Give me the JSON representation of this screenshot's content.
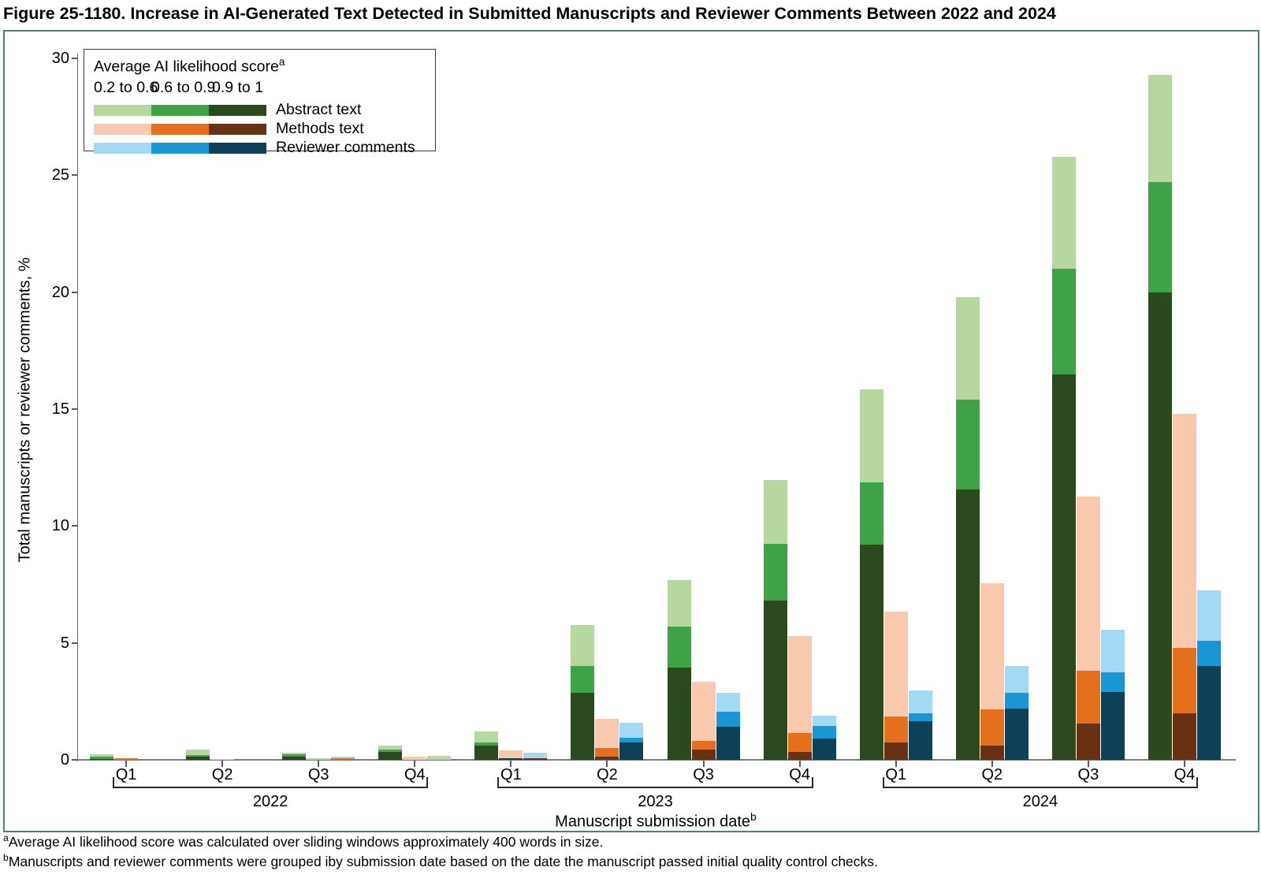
{
  "figure": {
    "title": "Figure 25-1180. Increase in AI-Generated Text Detected in Submitted Manuscripts and Reviewer Comments Between 2022 and 2024"
  },
  "legend": {
    "title": "Average AI likelihood score",
    "title_sup": "a",
    "ranges": [
      "0.2 to 0.6",
      "0.6 to 0.9",
      "0.9 to 1"
    ],
    "rows": [
      {
        "label": "Abstract text",
        "colors": [
          "gl",
          "gm",
          "gd"
        ]
      },
      {
        "label": "Methods text",
        "colors": [
          "ol",
          "om",
          "od"
        ]
      },
      {
        "label": "Reviewer comments",
        "colors": [
          "bl",
          "bm",
          "bd"
        ]
      }
    ]
  },
  "footnotes": [
    {
      "sup": "a",
      "text": "Average AI likelihood score was calculated over sliding windows approximately 400 words in size."
    },
    {
      "sup": "b",
      "text": "Manuscripts and reviewer comments were grouped iby submission date based on the date the manuscript passed initial quality control checks."
    }
  ],
  "chart_data": {
    "type": "bar",
    "stacked": true,
    "title": "Figure 25-1180. Increase in AI-Generated Text Detected in Submitted Manuscripts and Reviewer Comments Between 2022 and 2024",
    "ylabel": "Total manuscripts or reviewer comments, %",
    "xlabel": "Manuscript submission date",
    "xlabel_sup": "b",
    "ylim": [
      0,
      30
    ],
    "yticks": [
      0,
      5,
      10,
      15,
      20,
      25,
      30
    ],
    "legend_note": "Stack order bottom-to-top is 0.9 to 1 (dark), 0.6 to 0.9 (mid), 0.2 to 0.6 (light)",
    "colors": {
      "gl": "#b6d8a0",
      "gm": "#3fa246",
      "gd": "#2b491f",
      "ol": "#f8c9ae",
      "om": "#e4701e",
      "od": "#6a3013",
      "bl": "#a3d9f3",
      "bm": "#1b96d4",
      "bd": "#0d4158",
      "axis": "#7d7d7d",
      "panel_border": "#4c7f80"
    },
    "series_order": [
      "abstract",
      "methods",
      "reviewer"
    ],
    "years": [
      {
        "label": "2022",
        "quarters": [
          "Q1",
          "Q2",
          "Q3",
          "Q4"
        ]
      },
      {
        "label": "2023",
        "quarters": [
          "Q1",
          "Q2",
          "Q3",
          "Q4"
        ]
      },
      {
        "label": "2024",
        "quarters": [
          "Q1",
          "Q2",
          "Q3",
          "Q4"
        ]
      }
    ],
    "groups": [
      {
        "year": "2022",
        "quarter": "Q1",
        "abstract": [
          {
            "c": "gd",
            "v": 0.05
          },
          {
            "c": "gm",
            "v": 0.1
          },
          {
            "c": "gl",
            "v": 0.1
          }
        ],
        "methods": [
          {
            "c": "om",
            "v": 0.06
          }
        ],
        "reviewer": []
      },
      {
        "year": "2022",
        "quarter": "Q2",
        "abstract": [
          {
            "c": "gd",
            "v": 0.12
          },
          {
            "c": "gm",
            "v": 0.08
          },
          {
            "c": "gl",
            "v": 0.25
          }
        ],
        "methods": [
          {
            "c": "ol",
            "v": 0.05
          }
        ],
        "reviewer": []
      },
      {
        "year": "2022",
        "quarter": "Q3",
        "abstract": [
          {
            "c": "gd",
            "v": 0.15
          },
          {
            "c": "gm",
            "v": 0.07
          },
          {
            "c": "gl",
            "v": 0.08
          }
        ],
        "methods": [
          {
            "c": "gl",
            "v": 0.07
          }
        ],
        "reviewer": [
          {
            "c": "om",
            "v": 0.08
          },
          {
            "c": "bl",
            "v": 0.05
          }
        ]
      },
      {
        "year": "2022",
        "quarter": "Q4",
        "abstract": [
          {
            "c": "gd",
            "v": 0.35
          },
          {
            "c": "gm",
            "v": 0.1
          },
          {
            "c": "gl",
            "v": 0.15
          }
        ],
        "methods": [
          {
            "c": "ol",
            "v": 0.12
          }
        ],
        "reviewer": [
          {
            "c": "gl",
            "v": 0.18
          }
        ]
      },
      {
        "year": "2023",
        "quarter": "Q1",
        "abstract": [
          {
            "c": "gd",
            "v": 0.6
          },
          {
            "c": "gm",
            "v": 0.15
          },
          {
            "c": "gl",
            "v": 0.45
          }
        ],
        "methods": [
          {
            "c": "bd",
            "v": 0.08
          },
          {
            "c": "ol",
            "v": 0.34
          }
        ],
        "reviewer": [
          {
            "c": "od",
            "v": 0.07
          },
          {
            "c": "bl",
            "v": 0.23
          }
        ]
      },
      {
        "year": "2023",
        "quarter": "Q2",
        "abstract": [
          {
            "c": "gd",
            "v": 2.85
          },
          {
            "c": "gm",
            "v": 1.15
          },
          {
            "c": "gl",
            "v": 1.75
          }
        ],
        "methods": [
          {
            "c": "od",
            "v": 0.12
          },
          {
            "c": "om",
            "v": 0.4
          },
          {
            "c": "ol",
            "v": 1.23
          }
        ],
        "reviewer": [
          {
            "c": "bd",
            "v": 0.75
          },
          {
            "c": "bm",
            "v": 0.2
          },
          {
            "c": "bl",
            "v": 0.65
          }
        ]
      },
      {
        "year": "2023",
        "quarter": "Q3",
        "abstract": [
          {
            "c": "gd",
            "v": 3.95
          },
          {
            "c": "gm",
            "v": 1.75
          },
          {
            "c": "gl",
            "v": 2.0
          }
        ],
        "methods": [
          {
            "c": "od",
            "v": 0.45
          },
          {
            "c": "om",
            "v": 0.35
          },
          {
            "c": "ol",
            "v": 2.55
          }
        ],
        "reviewer": [
          {
            "c": "bd",
            "v": 1.4
          },
          {
            "c": "bm",
            "v": 0.65
          },
          {
            "c": "bl",
            "v": 0.8
          }
        ]
      },
      {
        "year": "2023",
        "quarter": "Q4",
        "abstract": [
          {
            "c": "gd",
            "v": 6.8
          },
          {
            "c": "gm",
            "v": 2.45
          },
          {
            "c": "gl",
            "v": 2.7
          }
        ],
        "methods": [
          {
            "c": "od",
            "v": 0.35
          },
          {
            "c": "om",
            "v": 0.8
          },
          {
            "c": "ol",
            "v": 4.15
          }
        ],
        "reviewer": [
          {
            "c": "bd",
            "v": 0.9
          },
          {
            "c": "bm",
            "v": 0.55
          },
          {
            "c": "bl",
            "v": 0.45
          }
        ]
      },
      {
        "year": "2024",
        "quarter": "Q1",
        "abstract": [
          {
            "c": "gd",
            "v": 9.2
          },
          {
            "c": "gm",
            "v": 2.65
          },
          {
            "c": "gl",
            "v": 4.0
          }
        ],
        "methods": [
          {
            "c": "od",
            "v": 0.75
          },
          {
            "c": "om",
            "v": 1.1
          },
          {
            "c": "ol",
            "v": 4.5
          }
        ],
        "reviewer": [
          {
            "c": "bd",
            "v": 1.65
          },
          {
            "c": "bm",
            "v": 0.35
          },
          {
            "c": "bl",
            "v": 0.95
          }
        ]
      },
      {
        "year": "2024",
        "quarter": "Q2",
        "abstract": [
          {
            "c": "gd",
            "v": 11.55
          },
          {
            "c": "gm",
            "v": 3.85
          },
          {
            "c": "gl",
            "v": 4.4
          }
        ],
        "methods": [
          {
            "c": "od",
            "v": 0.6
          },
          {
            "c": "om",
            "v": 1.55
          },
          {
            "c": "ol",
            "v": 5.4
          }
        ],
        "reviewer": [
          {
            "c": "bd",
            "v": 2.2
          },
          {
            "c": "bm",
            "v": 0.65
          },
          {
            "c": "bl",
            "v": 1.15
          }
        ]
      },
      {
        "year": "2024",
        "quarter": "Q3",
        "abstract": [
          {
            "c": "gd",
            "v": 16.5
          },
          {
            "c": "gm",
            "v": 4.5
          },
          {
            "c": "gl",
            "v": 4.8
          }
        ],
        "methods": [
          {
            "c": "od",
            "v": 1.55
          },
          {
            "c": "om",
            "v": 2.25
          },
          {
            "c": "ol",
            "v": 7.45
          }
        ],
        "reviewer": [
          {
            "c": "bd",
            "v": 2.9
          },
          {
            "c": "bm",
            "v": 0.85
          },
          {
            "c": "bl",
            "v": 1.8
          }
        ]
      },
      {
        "year": "2024",
        "quarter": "Q4",
        "abstract": [
          {
            "c": "gd",
            "v": 20.0
          },
          {
            "c": "gm",
            "v": 4.7
          },
          {
            "c": "gl",
            "v": 4.6
          }
        ],
        "methods": [
          {
            "c": "od",
            "v": 2.0
          },
          {
            "c": "om",
            "v": 2.8
          },
          {
            "c": "ol",
            "v": 10.0
          }
        ],
        "reviewer": [
          {
            "c": "bd",
            "v": 4.0
          },
          {
            "c": "bm",
            "v": 1.1
          },
          {
            "c": "bl",
            "v": 2.15
          }
        ]
      }
    ]
  }
}
